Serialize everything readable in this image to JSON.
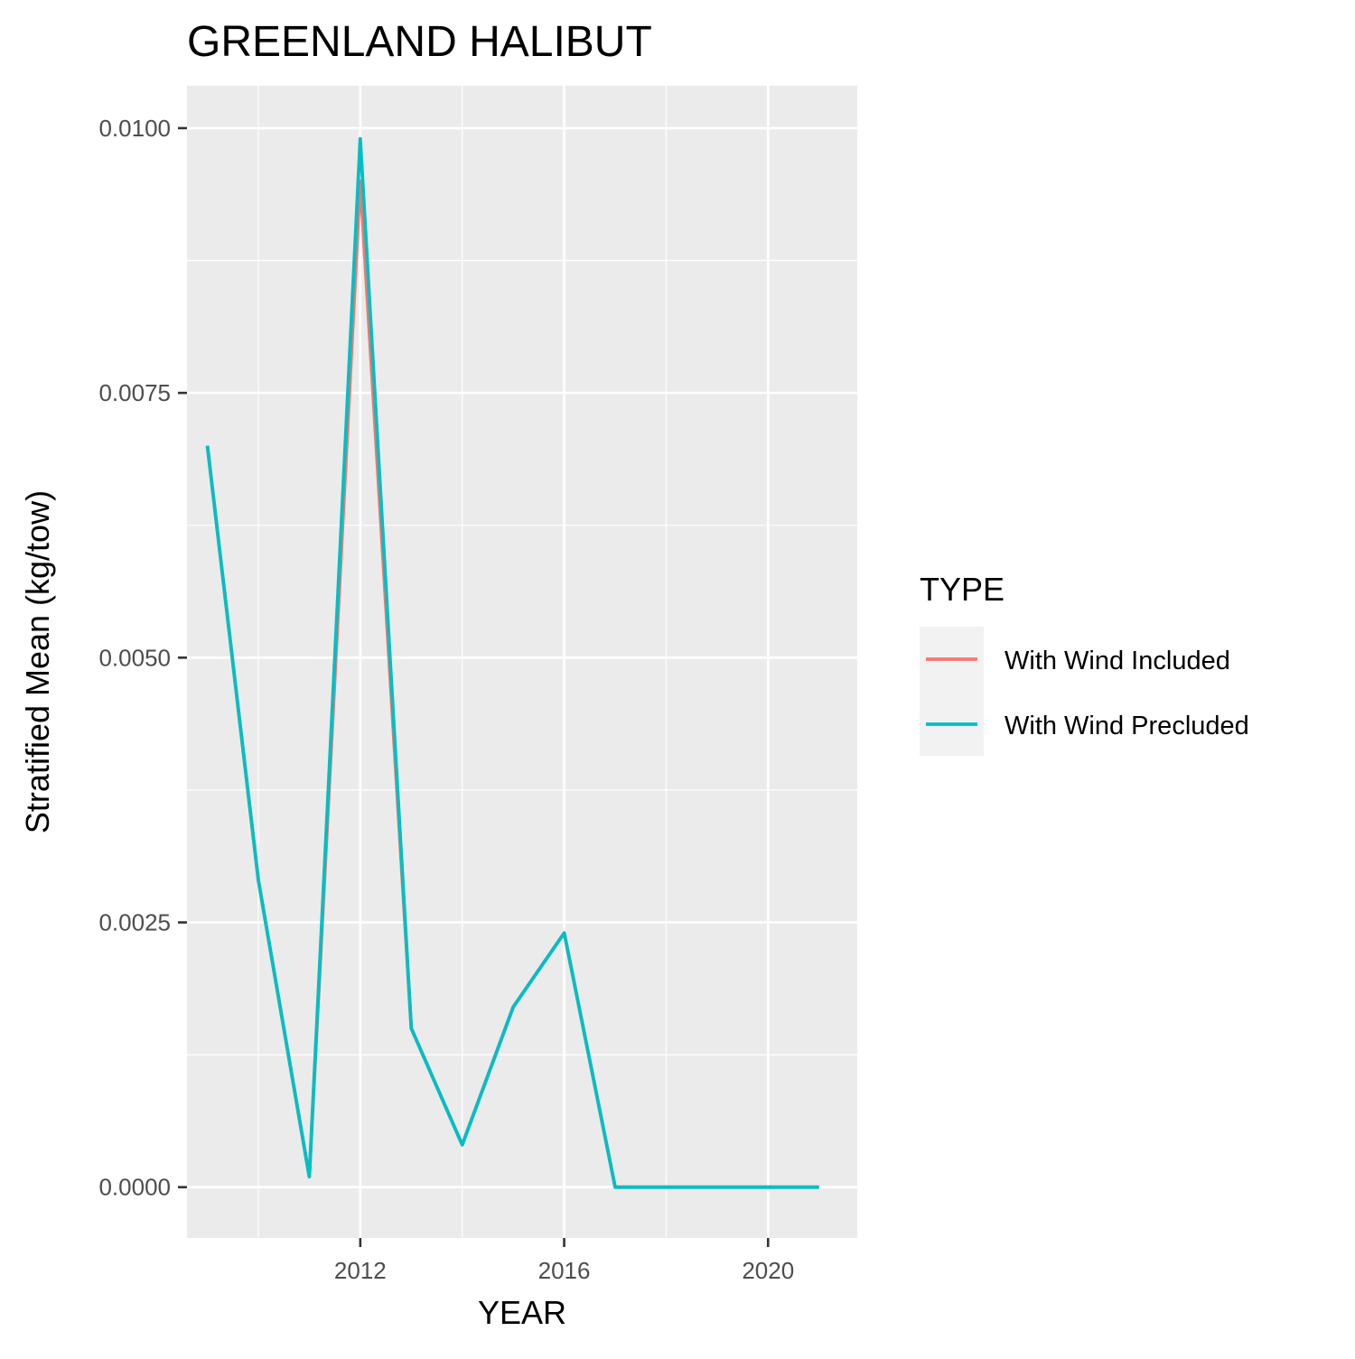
{
  "chart_data": {
    "type": "line",
    "title": "GREENLAND HALIBUT",
    "xlabel": "YEAR",
    "ylabel": "Stratified Mean (kg/tow)",
    "xlim": [
      2008.6,
      2021.75
    ],
    "ylim": [
      -0.00048,
      0.0104
    ],
    "x_ticks": [
      2012,
      2016,
      2020
    ],
    "y_ticks": [
      0.0,
      0.0025,
      0.005,
      0.0075,
      0.01
    ],
    "y_tick_labels": [
      "0.0000",
      "0.0025",
      "0.0050",
      "0.0075",
      "0.0100"
    ],
    "grid": true,
    "legend": {
      "title": "TYPE",
      "position": "right"
    },
    "x": [
      2009,
      2010,
      2011,
      2012,
      2013,
      2014,
      2015,
      2016,
      2017,
      2018,
      2019,
      2020,
      2021
    ],
    "series": [
      {
        "name": "With Wind Included",
        "color": "#F8766D",
        "values": [
          0.007,
          0.0029,
          0.0001,
          0.0095,
          0.0015,
          0.0004,
          0.0017,
          0.0024,
          0.0,
          0.0,
          0.0,
          0.0,
          0.0
        ]
      },
      {
        "name": "With Wind Precluded",
        "color": "#00BFC4",
        "values": [
          0.007,
          0.0029,
          0.0001,
          0.0099,
          0.0015,
          0.0004,
          0.0017,
          0.0024,
          0.0,
          0.0,
          0.0,
          0.0,
          0.0
        ]
      }
    ]
  }
}
